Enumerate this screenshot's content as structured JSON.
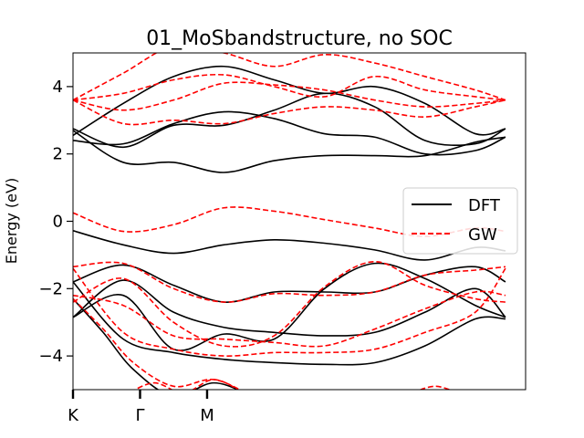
{
  "chart_data": {
    "type": "line",
    "title": "01_MoSbandstructure, no SOC",
    "xlabel": "",
    "ylabel": "Energy (eV)",
    "ylim": [
      -5,
      5
    ],
    "xlim": [
      0,
      4.5
    ],
    "grid": false,
    "legend_position": "right",
    "x_ticks": [
      {
        "x": 0.0,
        "label": "K"
      },
      {
        "x": 0.6667,
        "label": "Γ"
      },
      {
        "x": 1.3333,
        "label": "M"
      }
    ],
    "y_ticks": [
      {
        "y": -4,
        "label": "−4"
      },
      {
        "y": -2,
        "label": "−2"
      },
      {
        "y": 0,
        "label": "0"
      },
      {
        "y": 2,
        "label": "2"
      },
      {
        "y": 4,
        "label": "4"
      }
    ],
    "legend": [
      {
        "name": "DFT",
        "color": "#000000",
        "style": "solid"
      },
      {
        "name": "GW",
        "color": "#ff0000",
        "style": "dashed"
      }
    ],
    "series": [
      {
        "name": "DFT",
        "color": "#000000",
        "style": "solid",
        "bands": [
          {
            "x": [
              0,
              0.5,
              1,
              1.5,
              2,
              2.5,
              3,
              3.5,
              4,
              4.3
            ],
            "y": [
              -0.28,
              -0.7,
              -0.95,
              -0.7,
              -0.55,
              -0.65,
              -0.85,
              -1.15,
              -0.78,
              -0.88
            ]
          },
          {
            "x": [
              0,
              0.5,
              1,
              1.5,
              2,
              2.5,
              3,
              3.5,
              4,
              4.3
            ],
            "y": [
              2.7,
              1.75,
              1.75,
              1.45,
              1.8,
              1.95,
              1.95,
              1.95,
              2.35,
              2.5
            ]
          },
          {
            "x": [
              0,
              0.5,
              1,
              1.5,
              2,
              2.5,
              3,
              3.5,
              4,
              4.3
            ],
            "y": [
              2.55,
              3.5,
              4.3,
              4.6,
              4.2,
              3.8,
              4.0,
              3.5,
              2.6,
              2.75
            ]
          },
          {
            "x": [
              0,
              0.5,
              1,
              1.5,
              2,
              2.5,
              3,
              3.5,
              4,
              4.3
            ],
            "y": [
              2.4,
              2.3,
              2.9,
              3.25,
              3.05,
              2.6,
              2.5,
              2.0,
              2.1,
              2.5
            ]
          },
          {
            "x": [
              0,
              0.5,
              1,
              1.5,
              2,
              2.5,
              3,
              3.5,
              4,
              4.3
            ],
            "y": [
              2.75,
              2.2,
              2.85,
              2.85,
              3.3,
              3.8,
              3.4,
              2.4,
              2.3,
              2.75
            ]
          },
          {
            "x": [
              0,
              0.5,
              1,
              1.5,
              2,
              2.5,
              3,
              3.5,
              4,
              4.3
            ],
            "y": [
              -1.8,
              -1.3,
              -1.9,
              -2.4,
              -2.1,
              -2.1,
              -2.1,
              -1.6,
              -1.35,
              -1.8
            ]
          },
          {
            "x": [
              0,
              0.5,
              1,
              1.5,
              2,
              2.5,
              3,
              3.5,
              4,
              4.3
            ],
            "y": [
              -2.85,
              -1.75,
              -2.7,
              -3.15,
              -3.3,
              -3.4,
              -3.3,
              -2.7,
              -2.0,
              -2.85
            ]
          },
          {
            "x": [
              0,
              0.5,
              1,
              1.5,
              2,
              2.5,
              3,
              3.5,
              4,
              4.3
            ],
            "y": [
              -2.85,
              -2.2,
              -3.8,
              -3.35,
              -3.5,
              -2.0,
              -1.25,
              -1.7,
              -2.5,
              -2.85
            ]
          },
          {
            "x": [
              0,
              0.5,
              1,
              1.5,
              2,
              2.5,
              3,
              3.5,
              4,
              4.3
            ],
            "y": [
              -1.8,
              -3.5,
              -3.9,
              -4.1,
              -4.2,
              -4.25,
              -4.2,
              -3.7,
              -2.9,
              -2.9
            ]
          },
          {
            "x": [
              0,
              0.3,
              0.6,
              1.0,
              1.4,
              1.8,
              2.2,
              2.6
            ],
            "y": [
              -2.3,
              -3.3,
              -4.4,
              -5.2,
              -4.8,
              -5.2,
              -5.6,
              -6.0
            ]
          }
        ]
      },
      {
        "name": "GW",
        "color": "#ff0000",
        "style": "dashed",
        "bands": [
          {
            "x": [
              0,
              0.5,
              1,
              1.5,
              2,
              2.5,
              3,
              3.5,
              4,
              4.3
            ],
            "y": [
              0.25,
              -0.3,
              -0.1,
              0.4,
              0.3,
              0.05,
              -0.2,
              -0.45,
              -0.2,
              -0.3
            ]
          },
          {
            "x": [
              0,
              0.5,
              1,
              1.5,
              2,
              2.5,
              3,
              3.5,
              4,
              4.3
            ],
            "y": [
              3.6,
              2.9,
              3.0,
              2.9,
              3.2,
              3.4,
              3.3,
              3.1,
              3.4,
              3.6
            ]
          },
          {
            "x": [
              0,
              0.5,
              1,
              1.5,
              2,
              2.5,
              3,
              3.5,
              4,
              4.3
            ],
            "y": [
              3.6,
              4.4,
              5.2,
              5.0,
              4.6,
              4.95,
              4.7,
              4.3,
              3.9,
              3.6
            ]
          },
          {
            "x": [
              0,
              0.5,
              1,
              1.5,
              2,
              2.5,
              3,
              3.5,
              4,
              4.3
            ],
            "y": [
              3.6,
              3.8,
              4.2,
              4.35,
              4.0,
              3.7,
              4.3,
              3.9,
              3.7,
              3.6
            ]
          },
          {
            "x": [
              0,
              0.5,
              1,
              1.5,
              2,
              2.5,
              3,
              3.5,
              4,
              4.3
            ],
            "y": [
              3.6,
              3.3,
              3.6,
              4.1,
              4.05,
              3.9,
              3.6,
              3.4,
              3.5,
              3.6
            ]
          },
          {
            "x": [
              0,
              0.5,
              1,
              1.5,
              2,
              2.5,
              3,
              3.5,
              4,
              4.3
            ],
            "y": [
              -1.35,
              -1.25,
              -2.0,
              -2.4,
              -2.15,
              -2.2,
              -2.1,
              -1.6,
              -1.45,
              -1.35
            ]
          },
          {
            "x": [
              0,
              0.5,
              1,
              1.5,
              2,
              2.5,
              3,
              3.5,
              4,
              4.3
            ],
            "y": [
              -2.4,
              -1.7,
              -3.0,
              -3.7,
              -3.4,
              -1.95,
              -1.2,
              -1.9,
              -2.3,
              -2.4
            ]
          },
          {
            "x": [
              0,
              0.5,
              1,
              1.5,
              2,
              2.5,
              3,
              3.5,
              4,
              4.3
            ],
            "y": [
              -2.2,
              -2.5,
              -3.4,
              -3.5,
              -3.6,
              -3.7,
              -3.2,
              -2.6,
              -2.1,
              -2.2
            ]
          },
          {
            "x": [
              0,
              0.5,
              1,
              1.5,
              2,
              2.5,
              3,
              3.5,
              4,
              4.3
            ],
            "y": [
              -1.4,
              -3.3,
              -3.8,
              -4.0,
              -3.9,
              -3.9,
              -3.8,
              -3.3,
              -2.7,
              -1.4
            ]
          },
          {
            "x": [
              0,
              0.3,
              0.6,
              1.0,
              1.4,
              1.8,
              2.2
            ],
            "y": [
              -2.3,
              -3.2,
              -4.2,
              -4.9,
              -4.7,
              -5.2,
              -5.6
            ]
          },
          {
            "x": [
              0.5,
              0.8,
              1.1,
              1.4,
              1.7
            ],
            "y": [
              -5.2,
              -4.8,
              -5.1,
              -4.7,
              -5.1
            ]
          },
          {
            "x": [
              3.3,
              3.6,
              3.9
            ],
            "y": [
              -5.2,
              -4.9,
              -5.2
            ]
          }
        ]
      }
    ]
  }
}
